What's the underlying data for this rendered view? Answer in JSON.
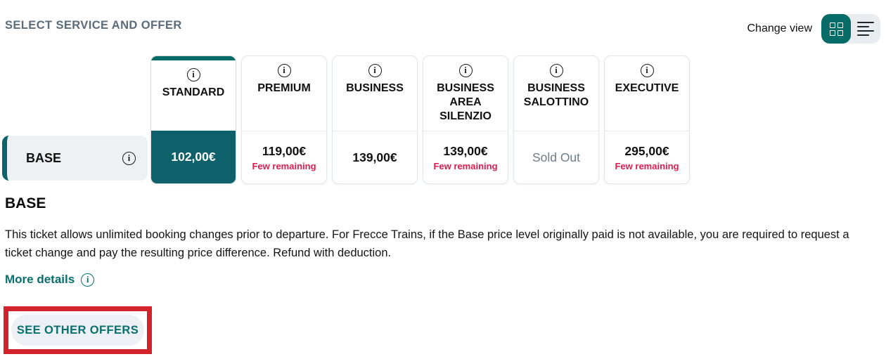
{
  "header": {
    "title": "SELECT SERVICE AND OFFER",
    "change_view_label": "Change view"
  },
  "colors": {
    "teal_accent": "#066A66",
    "teal_selected_cell": "#0E616A",
    "teal_text": "#076F6D",
    "few_remaining_red": "#E31A4D",
    "annotation_red": "#D2232A",
    "title_gray": "#5C6B79",
    "soldout_gray": "#6F7C8A",
    "pill_bg": "#EEF1F4"
  },
  "fare_table": {
    "row_label": "BASE",
    "columns": [
      {
        "label": "STANDARD",
        "price": "102,00€",
        "note": "",
        "state": "selected"
      },
      {
        "label": "PREMIUM",
        "price": "119,00€",
        "note": "Few remaining",
        "state": "available"
      },
      {
        "label": "BUSINESS",
        "price": "139,00€",
        "note": "",
        "state": "available"
      },
      {
        "label": "BUSINESS AREA SILENZIO",
        "price": "139,00€",
        "note": "Few remaining",
        "state": "available"
      },
      {
        "label": "BUSINESS SALOTTINO",
        "price": "Sold Out",
        "note": "",
        "state": "soldout"
      },
      {
        "label": "EXECUTIVE",
        "price": "295,00€",
        "note": "Few remaining",
        "state": "available"
      }
    ]
  },
  "details": {
    "heading": "BASE",
    "description": "This ticket allows unlimited booking changes prior to departure. For Frecce Trains, if the Base price level originally paid is not available, you are required to request a ticket change and pay the resulting price difference. Refund with deduction.",
    "more_details_label": "More details"
  },
  "actions": {
    "see_other_offers_label": "SEE OTHER OFFERS"
  }
}
